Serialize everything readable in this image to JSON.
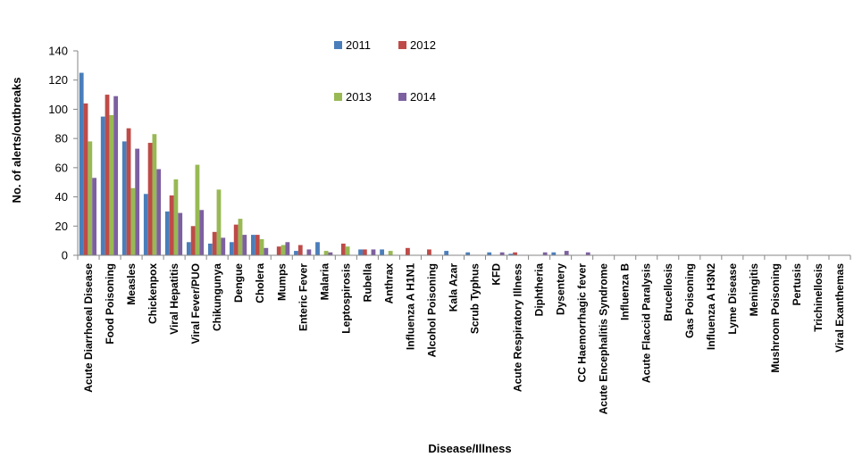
{
  "chart_data": {
    "type": "bar",
    "title": "",
    "xlabel": "Disease/Illness",
    "ylabel": "No. of alerts/outbreaks",
    "ylim": [
      0,
      140
    ],
    "yticks": [
      0,
      20,
      40,
      60,
      80,
      100,
      120,
      140
    ],
    "grid": false,
    "legend_position": "top",
    "categories": [
      "Acute Diarrhoeal Disease",
      "Food Poisoning",
      "Measles",
      "Chickenpox",
      "Viral Hepatitis",
      "Viral Fever/PUO",
      "Chikungunya",
      "Dengue",
      "Cholera",
      "Mumps",
      "Enteric Fever",
      "Malaria",
      "Leptospirosis",
      "Rubella",
      "Anthrax",
      "Influenza A H1N1",
      "Alcohol Poisoning",
      "Kala Azar",
      "Scrub Typhus",
      "KFD",
      "Acute Respiratory Illness",
      "Diphtheria",
      "Dysentery",
      "CC Haemorrhagic fever",
      "Acute Encephalitis Syndrome",
      "Influenza B",
      "Acute Flaccid Paralysis",
      "Brucellosis",
      "Gas Poisoning",
      "Influenza A H3N2",
      "Lyme Disease",
      "Meningitis",
      "Mushroom Poisoning",
      "Pertusis",
      "Trichinellosis",
      "Viral Exanthemas"
    ],
    "series": [
      {
        "name": "2011",
        "color": "#4a7ebb",
        "values": [
          125,
          95,
          78,
          42,
          30,
          9,
          8,
          9,
          14,
          0,
          3,
          9,
          0,
          4,
          4,
          0,
          0,
          3,
          2,
          2,
          1,
          0,
          2,
          0,
          0,
          0,
          0,
          0,
          0,
          0,
          0,
          0,
          0,
          0,
          0,
          0
        ]
      },
      {
        "name": "2012",
        "color": "#be4b48",
        "values": [
          104,
          110,
          87,
          77,
          41,
          20,
          16,
          21,
          14,
          6,
          7,
          0,
          8,
          4,
          0,
          5,
          4,
          0,
          0,
          0,
          2,
          0,
          0,
          0,
          0,
          0,
          0,
          0,
          0,
          0,
          0,
          0,
          0,
          0,
          0,
          0
        ]
      },
      {
        "name": "2013",
        "color": "#98b954",
        "values": [
          78,
          96,
          46,
          83,
          52,
          62,
          45,
          25,
          11,
          7,
          0,
          3,
          6,
          0,
          3,
          0,
          0,
          0,
          0,
          0,
          0,
          0,
          0,
          0,
          0,
          0,
          0,
          0,
          0,
          0,
          0,
          0,
          0,
          0,
          0,
          0
        ]
      },
      {
        "name": "2014",
        "color": "#7d60a0",
        "values": [
          53,
          109,
          73,
          59,
          29,
          31,
          12,
          14,
          5,
          9,
          4,
          2,
          0,
          4,
          0,
          0,
          0,
          0,
          0,
          2,
          0,
          2,
          3,
          2,
          0,
          0,
          0,
          0,
          0,
          0,
          0,
          0,
          0,
          0,
          0,
          0
        ]
      }
    ]
  }
}
